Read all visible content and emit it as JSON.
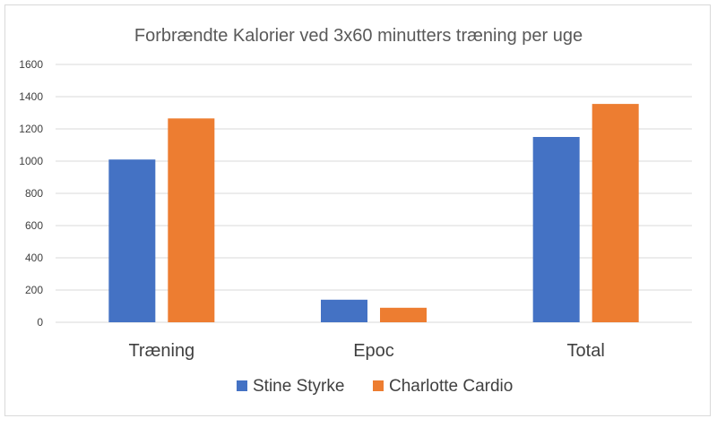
{
  "chart_data": {
    "type": "bar",
    "title": "Forbrændte Kalorier ved 3x60 minutters træning per uge",
    "xlabel": "",
    "ylabel": "",
    "categories": [
      "Træning",
      "Epoc",
      "Total"
    ],
    "series": [
      {
        "name": "Stine Styrke",
        "values": [
          1010,
          140,
          1150
        ],
        "color": "#4472c4"
      },
      {
        "name": "Charlotte Cardio",
        "values": [
          1265,
          90,
          1355
        ],
        "color": "#ed7d31"
      }
    ],
    "ylim": [
      0,
      1600
    ],
    "yticks": [
      0,
      200,
      400,
      600,
      800,
      1000,
      1200,
      1400,
      1600
    ],
    "grid": true,
    "legend_position": "bottom",
    "colors": {
      "gridline": "#d9d9d9",
      "text": "#404040",
      "title": "#595959"
    }
  }
}
